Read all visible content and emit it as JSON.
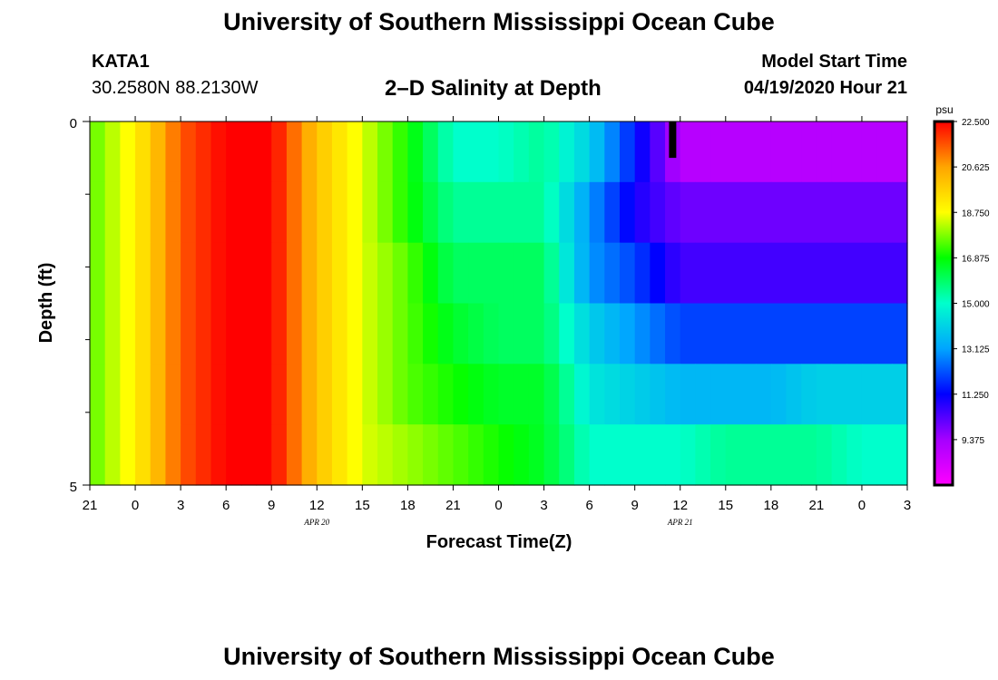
{
  "header": {
    "title": "University of Southern Mississippi Ocean Cube",
    "station_id": "KATA1",
    "station_location": "30.2580N 88.2130W",
    "chart_title": "2–D Salinity at Depth",
    "model_start_label": "Model Start Time",
    "model_start_time": "04/19/2020 Hour 21"
  },
  "footer": {
    "title": "University of Southern Mississippi Ocean Cube"
  },
  "chart_data": {
    "type": "heatmap",
    "title": "2–D Salinity at Depth",
    "xlabel": "Forecast Time(Z)",
    "ylabel": "Depth (ft)",
    "x_tick_labels": [
      "21",
      "0",
      "3",
      "6",
      "9",
      "12",
      "15",
      "18",
      "21",
      "0",
      "3",
      "6",
      "9",
      "12",
      "15",
      "18",
      "21",
      "0",
      "3"
    ],
    "x_hours": [
      0,
      3,
      6,
      9,
      12,
      15,
      18,
      21,
      24,
      27,
      30,
      33,
      36,
      39,
      42,
      45,
      48,
      51,
      54
    ],
    "date_labels": [
      {
        "label": "APR 20",
        "hour": 15
      },
      {
        "label": "APR 21",
        "hour": 39
      }
    ],
    "xlim": [
      0,
      54
    ],
    "y_tick_labels": [
      "0",
      "5"
    ],
    "ylim": [
      0,
      5
    ],
    "depth_layers": [
      0,
      1,
      2,
      3,
      4,
      5
    ],
    "colorbar": {
      "unit": "psu",
      "min": 7.5,
      "max": 22.5,
      "labels": [
        "22.500",
        "20.625",
        "18.750",
        "16.875",
        "15.000",
        "13.125",
        "11.250",
        "9.375"
      ],
      "colors": [
        "#ff00ff",
        "#a500ff",
        "#0000ff",
        "#00a5ff",
        "#00ffcc",
        "#00ff00",
        "#ffff00",
        "#ffa500",
        "#ff0000"
      ]
    },
    "series": [
      {
        "name": "0",
        "values": [
          17.5,
          19,
          21.5,
          22.5,
          22.5,
          20,
          18.5,
          17,
          15,
          15,
          15.5,
          14,
          11.5,
          9,
          9,
          9,
          9,
          9,
          9
        ]
      },
      {
        "name": "1",
        "values": [
          17.5,
          19,
          21.5,
          22.5,
          22.5,
          20,
          18.5,
          17,
          15.5,
          15.5,
          15.5,
          13,
          11,
          10,
          10,
          10,
          10,
          10,
          10
        ]
      },
      {
        "name": "2",
        "values": [
          17.5,
          19,
          21.5,
          22.5,
          22.5,
          20,
          18.5,
          17.5,
          16,
          16,
          16,
          13,
          12,
          10.5,
          10.5,
          10.5,
          10.5,
          10.5,
          10.5
        ]
      },
      {
        "name": "3",
        "values": [
          17.5,
          19,
          21.5,
          22.5,
          22.5,
          20,
          18.5,
          17.5,
          16.5,
          16,
          16,
          14,
          13,
          12,
          12,
          12,
          12,
          12,
          12
        ]
      },
      {
        "name": "4",
        "values": [
          17.5,
          19,
          21.5,
          22.5,
          22.5,
          20,
          18.5,
          17.5,
          17,
          16.5,
          16.5,
          14.5,
          14,
          13.5,
          13.5,
          13.5,
          14,
          14,
          14
        ]
      },
      {
        "name": "5",
        "values": [
          17.5,
          19,
          21.5,
          22.5,
          22.5,
          20,
          18.5,
          18,
          17.5,
          17,
          16.5,
          15,
          15,
          15,
          15.5,
          15.5,
          15.5,
          15,
          15
        ]
      }
    ],
    "marker": {
      "hour": 38.5,
      "depth_from": 0,
      "depth_to": 0.5
    }
  }
}
